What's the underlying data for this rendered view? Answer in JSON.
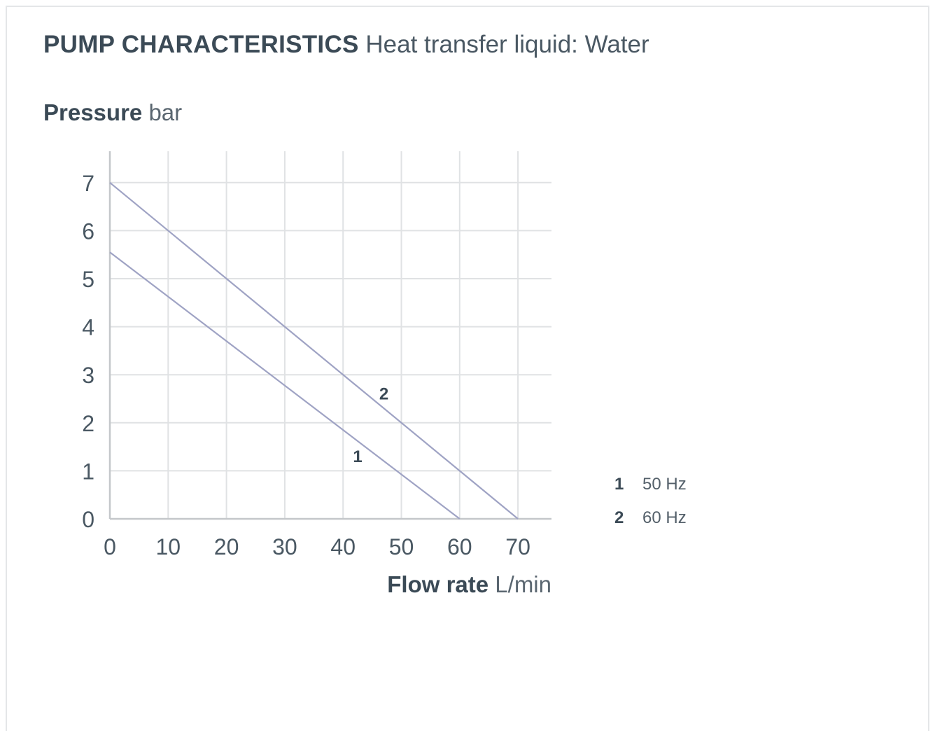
{
  "header": {
    "title_strong": "PUMP CHARACTERISTICS",
    "title_light": "Heat transfer liquid: Water"
  },
  "chart_data": {
    "type": "line",
    "ylabel_strong": "Pressure",
    "ylabel_unit": "bar",
    "xlabel_strong": "Flow rate",
    "xlabel_unit": "L/min",
    "xlim": [
      0,
      75
    ],
    "ylim": [
      0,
      7.6
    ],
    "xticks": [
      0,
      10,
      20,
      30,
      40,
      50,
      60,
      70
    ],
    "yticks": [
      0,
      1,
      2,
      3,
      4,
      5,
      6,
      7
    ],
    "grid": true,
    "colors": {
      "line": "#9fa3c4",
      "grid": "#e0e2e4",
      "axis": "#c4c7ca",
      "tick_text": "#4a5863"
    },
    "series": [
      {
        "name": "1",
        "x": [
          0,
          60
        ],
        "y": [
          5.55,
          0
        ],
        "label": "1",
        "label_at": [
          42.5,
          1.3
        ]
      },
      {
        "name": "2",
        "x": [
          0,
          70
        ],
        "y": [
          7,
          0
        ],
        "label": "2",
        "label_at": [
          47,
          2.6
        ]
      }
    ]
  },
  "legend": {
    "items": [
      {
        "num": "1",
        "text": "50 Hz"
      },
      {
        "num": "2",
        "text": "60 Hz"
      }
    ]
  }
}
